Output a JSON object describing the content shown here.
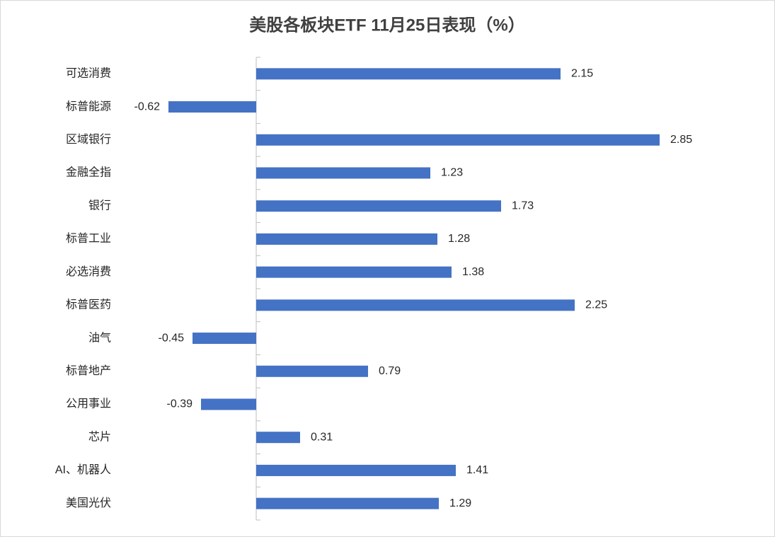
{
  "chart_data": {
    "type": "barh",
    "title": "美股各板块ETF  11月25日表现（%）",
    "categories": [
      "可选消费",
      "标普能源",
      "区域银行",
      "金融全指",
      "银行",
      "标普工业",
      "必选消费",
      "标普医药",
      "油气",
      "标普地产",
      "公用事业",
      "芯片",
      "AI、机器人",
      "美国光伏"
    ],
    "values": [
      2.15,
      -0.62,
      2.85,
      1.23,
      1.73,
      1.28,
      1.38,
      2.25,
      -0.45,
      0.79,
      -0.39,
      0.31,
      1.41,
      1.29
    ],
    "color": "#4472c4"
  }
}
